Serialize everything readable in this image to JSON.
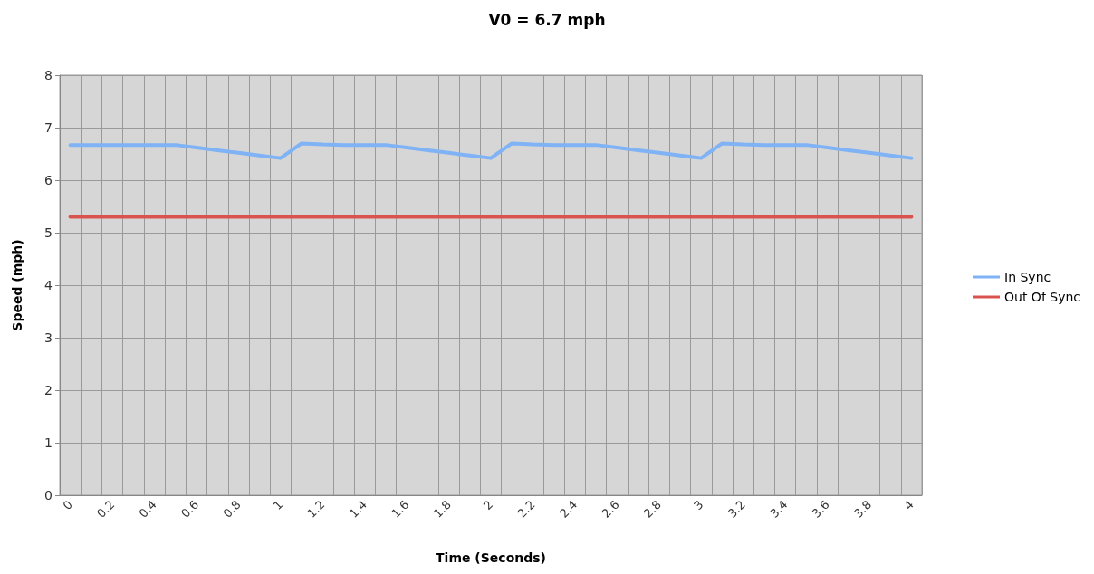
{
  "chart_data": {
    "type": "line",
    "title": "V0 = 6.7 mph",
    "xlabel": "Time (Seconds)",
    "ylabel": "Speed (mph)",
    "categories": [
      "0",
      null,
      "0.2",
      null,
      "0.4",
      null,
      "0.6",
      null,
      "0.8",
      null,
      "1",
      null,
      "1.2",
      null,
      "1.4",
      null,
      "1.6",
      null,
      "1.8",
      null,
      "2",
      null,
      "2.2",
      null,
      "2.4",
      null,
      "2.6",
      null,
      "2.8",
      null,
      "3",
      null,
      "3.2",
      null,
      "3.4",
      null,
      "3.6",
      null,
      "3.8",
      null,
      "4"
    ],
    "series": [
      {
        "name": "In Sync",
        "color": "#7fb3f5",
        "values": [
          6.67,
          6.67,
          6.67,
          6.67,
          6.67,
          6.67,
          6.62,
          6.57,
          6.52,
          6.47,
          6.42,
          6.7,
          6.68,
          6.67,
          6.67,
          6.67,
          6.62,
          6.57,
          6.52,
          6.47,
          6.42,
          6.7,
          6.68,
          6.67,
          6.67,
          6.67,
          6.62,
          6.57,
          6.52,
          6.47,
          6.42,
          6.7,
          6.68,
          6.67,
          6.67,
          6.67,
          6.62,
          6.57,
          6.52,
          6.47,
          6.42
        ]
      },
      {
        "name": "Out Of Sync",
        "color": "#d9534f",
        "values": [
          5.3,
          5.3,
          5.3,
          5.3,
          5.3,
          5.3,
          5.3,
          5.3,
          5.3,
          5.3,
          5.3,
          5.3,
          5.3,
          5.3,
          5.3,
          5.3,
          5.3,
          5.3,
          5.3,
          5.3,
          5.3,
          5.3,
          5.3,
          5.3,
          5.3,
          5.3,
          5.3,
          5.3,
          5.3,
          5.3,
          5.3,
          5.3,
          5.3,
          5.3,
          5.3,
          5.3,
          5.3,
          5.3,
          5.3,
          5.3,
          5.3
        ]
      }
    ],
    "ylim": [
      0,
      8
    ],
    "yticks": [
      0,
      1,
      2,
      3,
      4,
      5,
      6,
      7,
      8
    ],
    "grid": true,
    "legend": "right",
    "marker": "none",
    "line_style": "solid"
  }
}
